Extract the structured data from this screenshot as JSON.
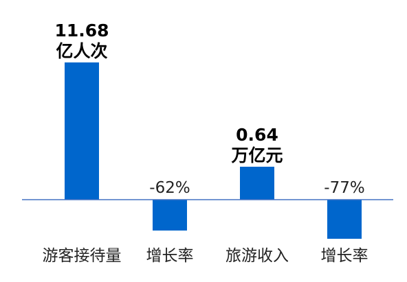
{
  "chart_data": {
    "type": "bar",
    "categories": [
      "游客接待量",
      "增长率",
      "旅游收入",
      "增长率"
    ],
    "values": [
      11.68,
      -62,
      0.64,
      -77
    ],
    "data_labels": [
      [
        "11.68",
        "亿人次"
      ],
      [
        "-62%"
      ],
      [
        "0.64",
        "万亿元"
      ],
      [
        "-77%"
      ]
    ],
    "bar_color": "#0066CC",
    "axis_color": "#4472C4",
    "label_bold": [
      true,
      false,
      true,
      false
    ],
    "grid": false,
    "legend": "none"
  }
}
